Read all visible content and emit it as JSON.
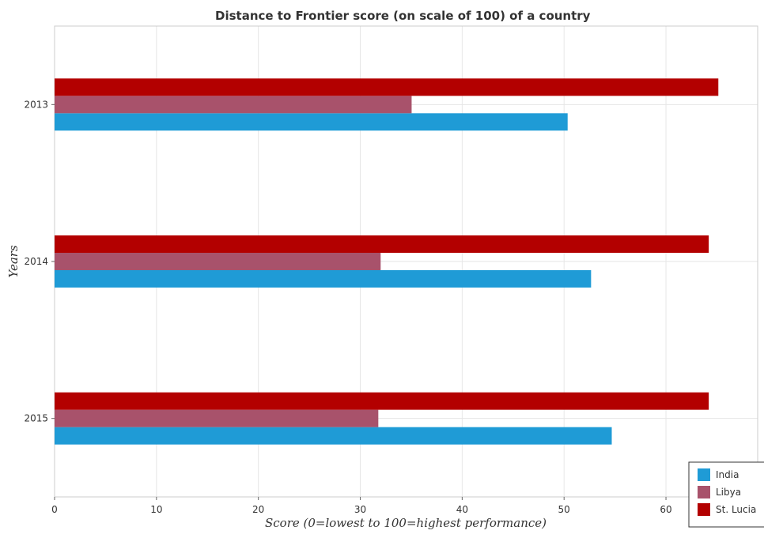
{
  "chart_data": {
    "type": "bar",
    "orientation": "horizontal",
    "title": "Distance to Frontier score (on scale of 100) of a country",
    "xlabel": "Score (0=lowest to 100=highest performance)",
    "ylabel": "Years",
    "categories": [
      "2013",
      "2014",
      "2015"
    ],
    "series": [
      {
        "name": "India",
        "color": "#1f9bd6",
        "values": [
          50.35,
          52.65,
          54.68
        ]
      },
      {
        "name": "Libya",
        "color": "#a8526b",
        "values": [
          35.04,
          32.0,
          31.77
        ]
      },
      {
        "name": "St. Lucia",
        "color": "#b30000",
        "values": [
          65.14,
          64.2,
          64.2
        ]
      }
    ],
    "xlim": [
      0,
      69
    ],
    "xticks": [
      0,
      10,
      20,
      30,
      40,
      50,
      60
    ],
    "grid": true,
    "legend_position": "bottom-right"
  }
}
